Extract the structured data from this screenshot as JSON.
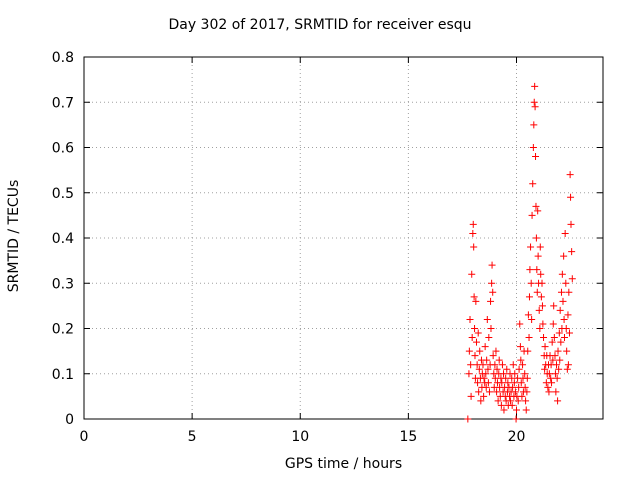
{
  "chart_data": {
    "type": "scatter",
    "title": "Day 302 of 2017, SRMTID for receiver esqu",
    "xlabel": "GPS time / hours",
    "ylabel": "SRMTID / TECUs",
    "xlim": [
      0,
      24
    ],
    "ylim": [
      0,
      0.8
    ],
    "xticks": [
      0,
      5,
      10,
      15,
      20
    ],
    "xtick_labels": [
      "0",
      "5",
      "10",
      "15",
      "20"
    ],
    "yticks": [
      0,
      0.1,
      0.2,
      0.3,
      0.4,
      0.5,
      0.6,
      0.7,
      0.8
    ],
    "ytick_labels": [
      "0",
      "0.1",
      "0.2",
      "0.3",
      "0.4",
      "0.5",
      "0.6",
      "0.7",
      "0.8"
    ],
    "grid": true,
    "marker": "+",
    "color": "#ff0000",
    "points": [
      [
        17.75,
        0.0
      ],
      [
        17.8,
        0.1
      ],
      [
        17.82,
        0.15
      ],
      [
        17.85,
        0.22
      ],
      [
        17.88,
        0.12
      ],
      [
        17.9,
        0.05
      ],
      [
        17.93,
        0.32
      ],
      [
        17.95,
        0.18
      ],
      [
        17.98,
        0.41
      ],
      [
        18.0,
        0.43
      ],
      [
        18.02,
        0.38
      ],
      [
        18.04,
        0.27
      ],
      [
        18.06,
        0.2
      ],
      [
        18.08,
        0.14
      ],
      [
        18.1,
        0.09
      ],
      [
        18.12,
        0.26
      ],
      [
        18.15,
        0.17
      ],
      [
        18.18,
        0.12
      ],
      [
        18.2,
        0.08
      ],
      [
        18.23,
        0.19
      ],
      [
        18.25,
        0.06
      ],
      [
        18.28,
        0.11
      ],
      [
        18.3,
        0.15
      ],
      [
        18.33,
        0.09
      ],
      [
        18.35,
        0.04
      ],
      [
        18.38,
        0.13
      ],
      [
        18.4,
        0.07
      ],
      [
        18.42,
        0.1
      ],
      [
        18.45,
        0.12
      ],
      [
        18.48,
        0.05
      ],
      [
        18.5,
        0.09
      ],
      [
        18.53,
        0.08
      ],
      [
        18.55,
        0.16
      ],
      [
        18.58,
        0.1
      ],
      [
        18.6,
        0.07
      ],
      [
        18.62,
        0.13
      ],
      [
        18.65,
        0.22
      ],
      [
        18.68,
        0.11
      ],
      [
        18.7,
        0.08
      ],
      [
        18.72,
        0.18
      ],
      [
        18.75,
        0.06
      ],
      [
        18.78,
        0.12
      ],
      [
        18.8,
        0.26
      ],
      [
        18.82,
        0.2
      ],
      [
        18.85,
        0.3
      ],
      [
        18.87,
        0.34
      ],
      [
        18.9,
        0.28
      ],
      [
        18.92,
        0.14
      ],
      [
        18.95,
        0.1
      ],
      [
        18.97,
        0.07
      ],
      [
        19.0,
        0.12
      ],
      [
        19.02,
        0.09
      ],
      [
        19.05,
        0.15
      ],
      [
        19.08,
        0.06
      ],
      [
        19.1,
        0.11
      ],
      [
        19.12,
        0.08
      ],
      [
        19.15,
        0.04
      ],
      [
        19.18,
        0.1
      ],
      [
        19.2,
        0.13
      ],
      [
        19.22,
        0.07
      ],
      [
        19.25,
        0.05
      ],
      [
        19.28,
        0.09
      ],
      [
        19.3,
        0.03
      ],
      [
        19.32,
        0.08
      ],
      [
        19.35,
        0.12
      ],
      [
        19.38,
        0.06
      ],
      [
        19.4,
        0.1
      ],
      [
        19.42,
        0.02
      ],
      [
        19.45,
        0.07
      ],
      [
        19.48,
        0.05
      ],
      [
        19.5,
        0.09
      ],
      [
        19.52,
        0.04
      ],
      [
        19.55,
        0.11
      ],
      [
        19.58,
        0.06
      ],
      [
        19.6,
        0.08
      ],
      [
        19.62,
        0.03
      ],
      [
        19.65,
        0.07
      ],
      [
        19.68,
        0.05
      ],
      [
        19.7,
        0.1
      ],
      [
        19.72,
        0.04
      ],
      [
        19.75,
        0.06
      ],
      [
        19.78,
        0.09
      ],
      [
        19.8,
        0.03
      ],
      [
        19.82,
        0.07
      ],
      [
        19.85,
        0.12
      ],
      [
        19.88,
        0.05
      ],
      [
        19.9,
        0.08
      ],
      [
        19.92,
        0.1
      ],
      [
        19.95,
        0.06
      ],
      [
        19.98,
        0.0
      ],
      [
        20.0,
        0.02
      ],
      [
        20.02,
        0.05
      ],
      [
        20.05,
        0.09
      ],
      [
        20.08,
        0.04
      ],
      [
        20.1,
        0.07
      ],
      [
        20.12,
        0.11
      ],
      [
        20.15,
        0.21
      ],
      [
        20.18,
        0.16
      ],
      [
        20.2,
        0.13
      ],
      [
        20.22,
        0.08
      ],
      [
        20.25,
        0.05
      ],
      [
        20.28,
        0.12
      ],
      [
        20.3,
        0.09
      ],
      [
        20.32,
        0.06
      ],
      [
        20.35,
        0.15
      ],
      [
        20.38,
        0.1
      ],
      [
        20.4,
        0.07
      ],
      [
        20.42,
        0.04
      ],
      [
        20.45,
        0.02
      ],
      [
        20.48,
        0.06
      ],
      [
        20.5,
        0.09
      ],
      [
        20.52,
        0.15
      ],
      [
        20.55,
        0.23
      ],
      [
        20.58,
        0.18
      ],
      [
        20.6,
        0.27
      ],
      [
        20.62,
        0.33
      ],
      [
        20.65,
        0.38
      ],
      [
        20.68,
        0.3
      ],
      [
        20.7,
        0.22
      ],
      [
        20.72,
        0.45
      ],
      [
        20.75,
        0.52
      ],
      [
        20.78,
        0.6
      ],
      [
        20.8,
        0.65
      ],
      [
        20.82,
        0.7
      ],
      [
        20.84,
        0.735
      ],
      [
        20.86,
        0.69
      ],
      [
        20.88,
        0.58
      ],
      [
        20.9,
        0.47
      ],
      [
        20.92,
        0.4
      ],
      [
        20.94,
        0.33
      ],
      [
        20.96,
        0.28
      ],
      [
        20.98,
        0.46
      ],
      [
        21.0,
        0.36
      ],
      [
        21.02,
        0.3
      ],
      [
        21.05,
        0.24
      ],
      [
        21.08,
        0.2
      ],
      [
        21.1,
        0.38
      ],
      [
        21.12,
        0.32
      ],
      [
        21.15,
        0.27
      ],
      [
        21.18,
        0.3
      ],
      [
        21.2,
        0.25
      ],
      [
        21.22,
        0.21
      ],
      [
        21.25,
        0.18
      ],
      [
        21.28,
        0.14
      ],
      [
        21.3,
        0.11
      ],
      [
        21.32,
        0.16
      ],
      [
        21.35,
        0.12
      ],
      [
        21.38,
        0.08
      ],
      [
        21.4,
        0.14
      ],
      [
        21.42,
        0.1
      ],
      [
        21.45,
        0.07
      ],
      [
        21.48,
        0.12
      ],
      [
        21.5,
        0.06
      ],
      [
        21.52,
        0.1
      ],
      [
        21.55,
        0.14
      ],
      [
        21.58,
        0.09
      ],
      [
        21.6,
        0.12
      ],
      [
        21.62,
        0.08
      ],
      [
        21.65,
        0.17
      ],
      [
        21.68,
        0.13
      ],
      [
        21.7,
        0.21
      ],
      [
        21.72,
        0.25
      ],
      [
        21.75,
        0.18
      ],
      [
        21.78,
        0.14
      ],
      [
        21.8,
        0.1
      ],
      [
        21.82,
        0.06
      ],
      [
        21.85,
        0.12
      ],
      [
        21.88,
        0.09
      ],
      [
        21.9,
        0.04
      ],
      [
        21.92,
        0.15
      ],
      [
        21.95,
        0.11
      ],
      [
        21.98,
        0.19
      ],
      [
        22.0,
        0.13
      ],
      [
        22.02,
        0.24
      ],
      [
        22.05,
        0.17
      ],
      [
        22.08,
        0.28
      ],
      [
        22.1,
        0.2
      ],
      [
        22.12,
        0.32
      ],
      [
        22.15,
        0.26
      ],
      [
        22.18,
        0.36
      ],
      [
        22.2,
        0.22
      ],
      [
        22.22,
        0.18
      ],
      [
        22.25,
        0.41
      ],
      [
        22.28,
        0.3
      ],
      [
        22.3,
        0.2
      ],
      [
        22.32,
        0.15
      ],
      [
        22.35,
        0.11
      ],
      [
        22.38,
        0.23
      ],
      [
        22.4,
        0.12
      ],
      [
        22.42,
        0.28
      ],
      [
        22.45,
        0.19
      ],
      [
        22.48,
        0.54
      ],
      [
        22.5,
        0.49
      ],
      [
        22.52,
        0.43
      ],
      [
        22.55,
        0.37
      ],
      [
        22.58,
        0.31
      ]
    ]
  }
}
